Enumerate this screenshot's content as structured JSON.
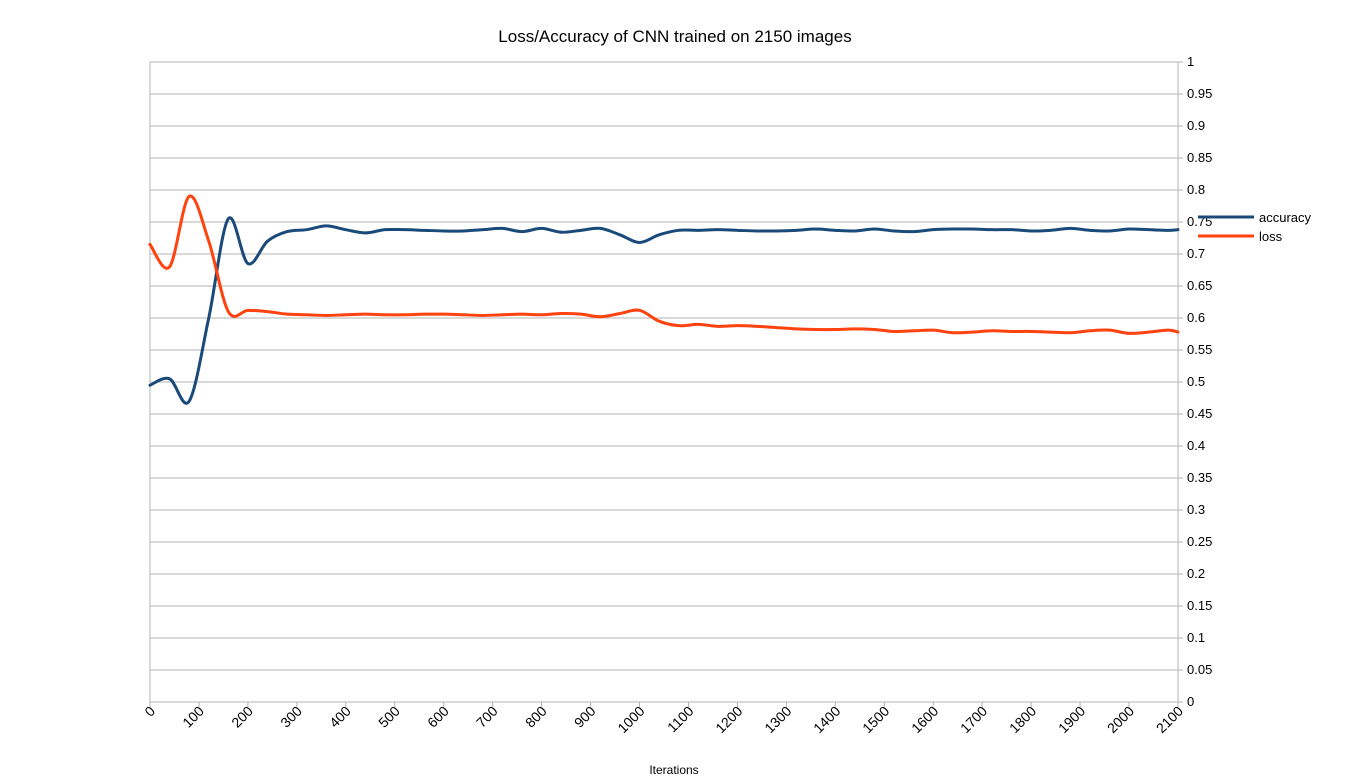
{
  "chart_data": {
    "type": "line",
    "title": "Loss/Accuracy of CNN trained on 2150 images",
    "xlabel": "Iterations",
    "ylabel": "",
    "xlim": [
      0,
      2100
    ],
    "ylim": [
      0,
      1
    ],
    "x_ticks": [
      "0",
      "100",
      "200",
      "300",
      "400",
      "500",
      "600",
      "700",
      "800",
      "900",
      "1000",
      "1100",
      "1200",
      "1300",
      "1400",
      "1500",
      "1600",
      "1700",
      "1800",
      "1900",
      "2000",
      "2100"
    ],
    "y_ticks": [
      "0",
      "0.05",
      "0.1",
      "0.15",
      "0.2",
      "0.25",
      "0.3",
      "0.35",
      "0.4",
      "0.45",
      "0.5",
      "0.55",
      "0.6",
      "0.65",
      "0.7",
      "0.75",
      "0.8",
      "0.85",
      "0.9",
      "0.95",
      "1"
    ],
    "y_axis_side": "right",
    "grid": true,
    "legend_position": "right",
    "series": [
      {
        "name": "accuracy",
        "color": "#1a4a7a",
        "x": [
          0,
          40,
          80,
          120,
          160,
          200,
          240,
          280,
          320,
          360,
          400,
          440,
          480,
          520,
          560,
          600,
          640,
          680,
          720,
          760,
          800,
          840,
          880,
          920,
          960,
          1000,
          1040,
          1080,
          1120,
          1160,
          1200,
          1240,
          1280,
          1320,
          1360,
          1400,
          1440,
          1480,
          1520,
          1560,
          1600,
          1640,
          1680,
          1720,
          1760,
          1800,
          1840,
          1880,
          1920,
          1960,
          2000,
          2040,
          2080,
          2100
        ],
        "y": [
          0.495,
          0.505,
          0.47,
          0.6,
          0.755,
          0.685,
          0.72,
          0.735,
          0.738,
          0.744,
          0.738,
          0.733,
          0.738,
          0.738,
          0.737,
          0.736,
          0.736,
          0.738,
          0.74,
          0.735,
          0.74,
          0.734,
          0.737,
          0.74,
          0.73,
          0.718,
          0.73,
          0.737,
          0.737,
          0.738,
          0.737,
          0.736,
          0.736,
          0.737,
          0.739,
          0.737,
          0.736,
          0.739,
          0.736,
          0.735,
          0.738,
          0.739,
          0.739,
          0.738,
          0.738,
          0.736,
          0.737,
          0.74,
          0.737,
          0.736,
          0.739,
          0.738,
          0.737,
          0.738
        ]
      },
      {
        "name": "loss",
        "color": "#ff420e",
        "x": [
          0,
          40,
          80,
          120,
          160,
          200,
          240,
          280,
          320,
          360,
          400,
          440,
          480,
          520,
          560,
          600,
          640,
          680,
          720,
          760,
          800,
          840,
          880,
          920,
          960,
          1000,
          1040,
          1080,
          1120,
          1160,
          1200,
          1240,
          1280,
          1320,
          1360,
          1400,
          1440,
          1480,
          1520,
          1560,
          1600,
          1640,
          1680,
          1720,
          1760,
          1800,
          1840,
          1880,
          1920,
          1960,
          2000,
          2040,
          2080,
          2100
        ],
        "y": [
          0.715,
          0.68,
          0.79,
          0.72,
          0.61,
          0.612,
          0.61,
          0.606,
          0.605,
          0.604,
          0.605,
          0.606,
          0.605,
          0.605,
          0.606,
          0.606,
          0.605,
          0.604,
          0.605,
          0.606,
          0.605,
          0.607,
          0.606,
          0.602,
          0.607,
          0.612,
          0.595,
          0.588,
          0.59,
          0.587,
          0.588,
          0.587,
          0.585,
          0.583,
          0.582,
          0.582,
          0.583,
          0.582,
          0.579,
          0.58,
          0.581,
          0.577,
          0.578,
          0.58,
          0.579,
          0.579,
          0.578,
          0.577,
          0.58,
          0.581,
          0.576,
          0.578,
          0.581,
          0.578
        ]
      }
    ]
  }
}
